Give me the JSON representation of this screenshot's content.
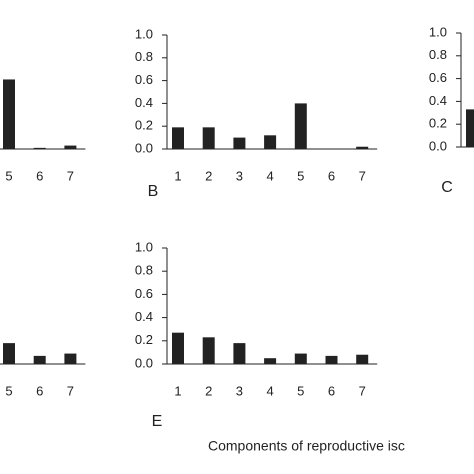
{
  "chart_data": [
    {
      "type": "bar",
      "categories": [
        "5",
        "6",
        "7"
      ],
      "values": [
        0.61,
        0.01,
        0.03
      ],
      "color": "#222222",
      "ylim": [
        0,
        1
      ]
    },
    {
      "type": "bar",
      "label": "B",
      "categories": [
        "1",
        "2",
        "3",
        "4",
        "5",
        "6",
        "7"
      ],
      "values": [
        0.19,
        0.19,
        0.1,
        0.12,
        0.4,
        0,
        0.02
      ],
      "color": "#222222",
      "ylim": [
        0,
        1
      ],
      "yticks": [
        {
          "value": 0,
          "label": "0.0"
        },
        {
          "value": 0.2,
          "label": "0.2"
        },
        {
          "value": 0.4,
          "label": "0.4"
        },
        {
          "value": 0.6,
          "label": "0.6"
        },
        {
          "value": 0.8,
          "label": "0.8"
        },
        {
          "value": 1,
          "label": "1.0"
        }
      ]
    },
    {
      "type": "bar",
      "label": "C",
      "categories": [
        null
      ],
      "values": [
        0.33
      ],
      "color": "#222222",
      "ylim": [
        0,
        1
      ],
      "yticks": [
        {
          "value": 0,
          "label": "0.0"
        },
        {
          "value": 0.2,
          "label": "0.2"
        },
        {
          "value": 0.4,
          "label": "0.4"
        },
        {
          "value": 0.6,
          "label": "0.6"
        },
        {
          "value": 0.8,
          "label": "0.8"
        },
        {
          "value": 1,
          "label": "1.0"
        }
      ]
    },
    {
      "type": "bar",
      "categories": [
        "5",
        "6",
        "7"
      ],
      "values": [
        0.18,
        0.07,
        0.09
      ],
      "color": "#222222",
      "ylim": [
        0,
        1
      ]
    },
    {
      "type": "bar",
      "label": "E",
      "categories": [
        "1",
        "2",
        "3",
        "4",
        "5",
        "6",
        "7"
      ],
      "values": [
        0.27,
        0.23,
        0.18,
        0.05,
        0.09,
        0.07,
        0.08
      ],
      "color": "#222222",
      "ylim": [
        0,
        1
      ],
      "yticks": [
        {
          "value": 0,
          "label": "0.0"
        },
        {
          "value": 0.2,
          "label": "0.2"
        },
        {
          "value": 0.4,
          "label": "0.4"
        },
        {
          "value": 0.6,
          "label": "0.6"
        },
        {
          "value": 0.8,
          "label": "0.8"
        },
        {
          "value": 1,
          "label": "1.0"
        }
      ]
    }
  ],
  "caption": "Components of reproductive isc"
}
